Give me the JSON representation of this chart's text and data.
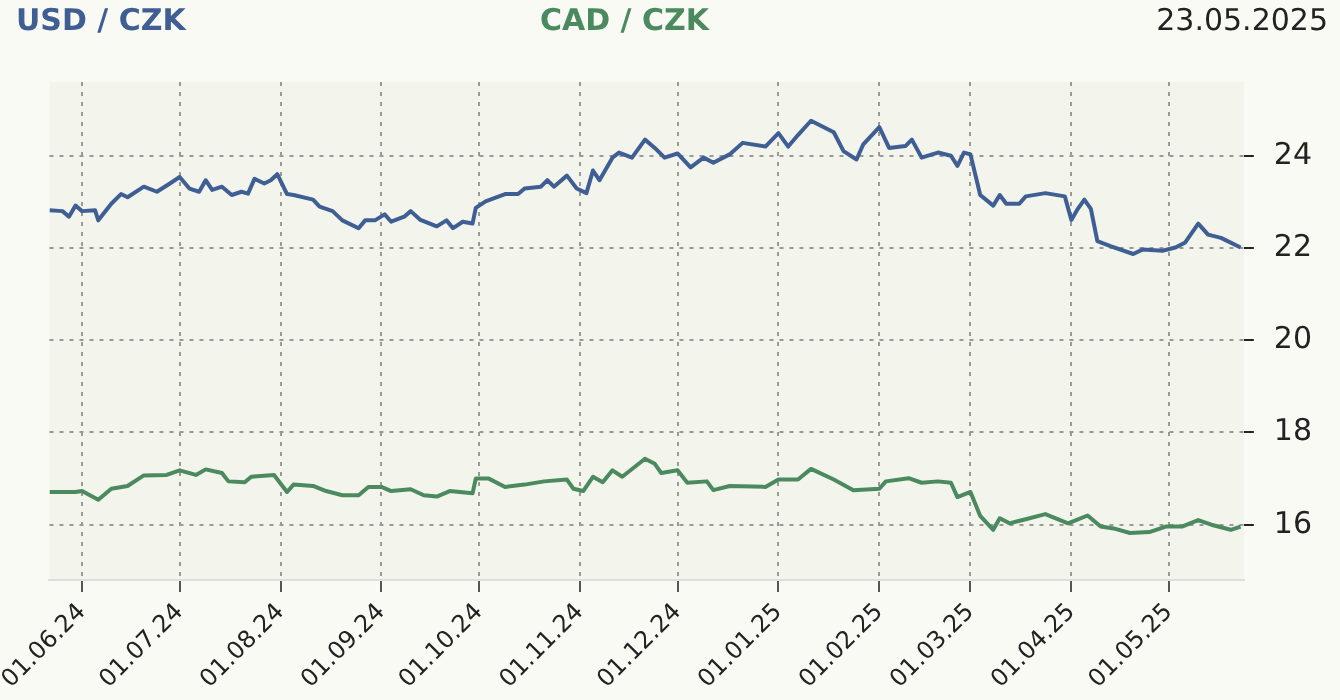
{
  "chart_data": {
    "type": "line",
    "legend": "top",
    "grid": true,
    "marker": "none",
    "line_style": "solid",
    "annotations": [
      "23.05.2025"
    ],
    "xlim": [
      "2024-05-22",
      "2025-05-24"
    ],
    "xticks": [
      {
        "value": "2024-06-01",
        "label": "01.06.24"
      },
      {
        "value": "2024-07-01",
        "label": "01.07.24"
      },
      {
        "value": "2024-08-01",
        "label": "01.08.24"
      },
      {
        "value": "2024-09-01",
        "label": "01.09.24"
      },
      {
        "value": "2024-10-01",
        "label": "01.10.24"
      },
      {
        "value": "2024-11-01",
        "label": "01.11.24"
      },
      {
        "value": "2024-12-01",
        "label": "01.12.24"
      },
      {
        "value": "2025-01-01",
        "label": "01.01.25"
      },
      {
        "value": "2025-02-01",
        "label": "01.02.25"
      },
      {
        "value": "2025-03-01",
        "label": "01.03.25"
      },
      {
        "value": "2025-04-01",
        "label": "01.04.25"
      },
      {
        "value": "2025-05-01",
        "label": "01.05.25"
      }
    ],
    "ylim": [
      14.8,
      25.6
    ],
    "yticks": [
      16,
      18,
      20,
      22,
      24
    ],
    "series": [
      {
        "name": "USD / CZK",
        "color": "#3f5f94",
        "x": [
          "2024-05-22",
          "2024-05-26",
          "2024-05-28",
          "2024-05-30",
          "2024-06-01",
          "2024-06-05",
          "2024-06-06",
          "2024-06-10",
          "2024-06-13",
          "2024-06-15",
          "2024-06-20",
          "2024-06-24",
          "2024-06-28",
          "2024-07-01",
          "2024-07-04",
          "2024-07-07",
          "2024-07-09",
          "2024-07-11",
          "2024-07-14",
          "2024-07-17",
          "2024-07-20",
          "2024-07-22",
          "2024-07-24",
          "2024-07-27",
          "2024-07-29",
          "2024-07-31",
          "2024-08-03",
          "2024-08-05",
          "2024-08-11",
          "2024-08-13",
          "2024-08-17",
          "2024-08-20",
          "2024-08-25",
          "2024-08-27",
          "2024-08-30",
          "2024-09-02",
          "2024-09-04",
          "2024-09-08",
          "2024-09-10",
          "2024-09-13",
          "2024-09-18",
          "2024-09-21",
          "2024-09-23",
          "2024-09-26",
          "2024-09-29",
          "2024-09-30",
          "2024-10-03",
          "2024-10-09",
          "2024-10-13",
          "2024-10-15",
          "2024-10-20",
          "2024-10-22",
          "2024-10-24",
          "2024-10-28",
          "2024-10-31",
          "2024-11-03",
          "2024-11-05",
          "2024-11-07",
          "2024-11-11",
          "2024-11-13",
          "2024-11-17",
          "2024-11-21",
          "2024-11-24",
          "2024-11-27",
          "2024-12-01",
          "2024-12-05",
          "2024-12-09",
          "2024-12-12",
          "2024-12-17",
          "2024-12-21",
          "2024-12-28",
          "2025-01-01",
          "2025-01-04",
          "2025-01-07",
          "2025-01-11",
          "2025-01-18",
          "2025-01-21",
          "2025-01-25",
          "2025-01-27",
          "2025-02-01",
          "2025-02-04",
          "2025-02-09",
          "2025-02-11",
          "2025-02-14",
          "2025-02-19",
          "2025-02-23",
          "2025-02-25",
          "2025-02-27",
          "2025-03-01",
          "2025-03-04",
          "2025-03-08",
          "2025-03-10",
          "2025-03-12",
          "2025-03-16",
          "2025-03-18",
          "2025-03-24",
          "2025-03-30",
          "2025-04-01",
          "2025-04-03",
          "2025-04-05",
          "2025-04-07",
          "2025-04-09",
          "2025-04-13",
          "2025-04-20",
          "2025-04-23",
          "2025-04-29",
          "2025-05-03",
          "2025-05-06",
          "2025-05-10",
          "2025-05-13",
          "2025-05-17",
          "2025-05-23"
        ],
        "values": [
          22.82,
          22.8,
          22.68,
          22.92,
          22.8,
          22.82,
          22.6,
          22.96,
          23.17,
          23.1,
          23.33,
          23.22,
          23.4,
          23.54,
          23.29,
          23.22,
          23.47,
          23.26,
          23.33,
          23.15,
          23.22,
          23.18,
          23.5,
          23.4,
          23.47,
          23.6,
          23.17,
          23.15,
          23.05,
          22.9,
          22.8,
          22.6,
          22.43,
          22.6,
          22.6,
          22.73,
          22.57,
          22.68,
          22.8,
          22.61,
          22.47,
          22.6,
          22.43,
          22.57,
          22.53,
          22.87,
          23.01,
          23.17,
          23.17,
          23.29,
          23.33,
          23.47,
          23.33,
          23.57,
          23.29,
          23.19,
          23.68,
          23.47,
          23.96,
          24.07,
          23.96,
          24.35,
          24.17,
          23.96,
          24.05,
          23.75,
          23.96,
          23.85,
          24.03,
          24.28,
          24.2,
          24.49,
          24.2,
          24.45,
          24.76,
          24.51,
          24.1,
          23.92,
          24.24,
          24.62,
          24.17,
          24.21,
          24.35,
          23.96,
          24.07,
          24.0,
          23.78,
          24.07,
          24.03,
          23.15,
          22.92,
          23.15,
          22.96,
          22.96,
          23.12,
          23.19,
          23.12,
          22.61,
          22.85,
          23.05,
          22.85,
          22.15,
          22.04,
          21.87,
          21.97,
          21.94,
          22.01,
          22.12,
          22.53,
          22.29,
          22.22,
          22.01
        ]
      },
      {
        "name": "CAD / CZK",
        "color": "#4a8a5e",
        "x": [
          "2024-05-22",
          "2024-05-30",
          "2024-06-01",
          "2024-06-06",
          "2024-06-10",
          "2024-06-15",
          "2024-06-20",
          "2024-06-27",
          "2024-07-01",
          "2024-07-06",
          "2024-07-09",
          "2024-07-14",
          "2024-07-16",
          "2024-07-21",
          "2024-07-23",
          "2024-07-30",
          "2024-08-03",
          "2024-08-05",
          "2024-08-11",
          "2024-08-15",
          "2024-08-20",
          "2024-08-25",
          "2024-08-28",
          "2024-09-01",
          "2024-09-04",
          "2024-09-10",
          "2024-09-14",
          "2024-09-18",
          "2024-09-22",
          "2024-09-29",
          "2024-09-30",
          "2024-10-04",
          "2024-10-09",
          "2024-10-15",
          "2024-10-21",
          "2024-10-28",
          "2024-10-30",
          "2024-11-02",
          "2024-11-05",
          "2024-11-08",
          "2024-11-11",
          "2024-11-14",
          "2024-11-21",
          "2024-11-24",
          "2024-11-26",
          "2024-12-01",
          "2024-12-04",
          "2024-12-10",
          "2024-12-12",
          "2024-12-17",
          "2024-12-28",
          "2025-01-01",
          "2025-01-07",
          "2025-01-11",
          "2025-01-18",
          "2025-01-24",
          "2025-02-01",
          "2025-02-03",
          "2025-02-10",
          "2025-02-14",
          "2025-02-19",
          "2025-02-23",
          "2025-02-25",
          "2025-03-01",
          "2025-03-04",
          "2025-03-08",
          "2025-03-10",
          "2025-03-13",
          "2025-03-18",
          "2025-03-24",
          "2025-03-31",
          "2025-04-06",
          "2025-04-10",
          "2025-04-14",
          "2025-04-19",
          "2025-04-25",
          "2025-04-30",
          "2025-05-05",
          "2025-05-10",
          "2025-05-14",
          "2025-05-20",
          "2025-05-23"
        ],
        "values": [
          16.71,
          16.71,
          16.73,
          16.54,
          16.78,
          16.84,
          17.07,
          17.08,
          17.18,
          17.08,
          17.2,
          17.12,
          16.94,
          16.92,
          17.04,
          17.08,
          16.71,
          16.87,
          16.84,
          16.73,
          16.64,
          16.64,
          16.82,
          16.82,
          16.73,
          16.77,
          16.64,
          16.61,
          16.73,
          16.68,
          17.0,
          17.0,
          16.82,
          16.87,
          16.94,
          16.98,
          16.78,
          16.73,
          17.04,
          16.92,
          17.18,
          17.04,
          17.43,
          17.32,
          17.12,
          17.18,
          16.91,
          16.94,
          16.75,
          16.84,
          16.82,
          16.98,
          16.98,
          17.21,
          16.98,
          16.75,
          16.78,
          16.94,
          17.01,
          16.91,
          16.94,
          16.91,
          16.6,
          16.71,
          16.19,
          15.89,
          16.14,
          16.03,
          16.12,
          16.23,
          16.03,
          16.2,
          15.96,
          15.92,
          15.82,
          15.84,
          15.96,
          15.96,
          16.1,
          16.0,
          15.89,
          15.96
        ]
      }
    ]
  }
}
